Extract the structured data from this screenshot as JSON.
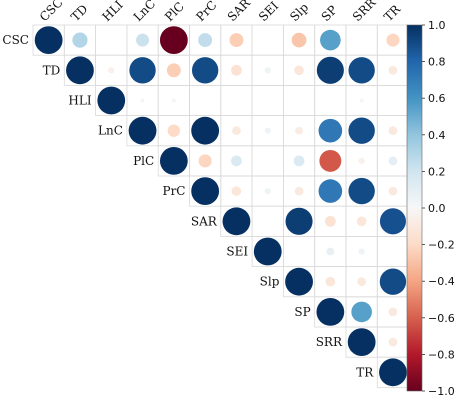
{
  "chart_data": {
    "type": "heatmap",
    "subtype": "upper-triangle correlation matrix, circles sized and colored by r",
    "variables": [
      "CSC",
      "TD",
      "HLI",
      "LnC",
      "PlC",
      "PrC",
      "SAR",
      "SEI",
      "Slp",
      "SP",
      "SRR",
      "TR"
    ],
    "matrix": [
      [
        1.0,
        0.3,
        0.0,
        0.22,
        -1.0,
        0.25,
        -0.25,
        0.0,
        -0.28,
        0.55,
        0.0,
        -0.22
      ],
      [
        0.3,
        1.0,
        -0.05,
        0.9,
        -0.25,
        0.9,
        -0.15,
        0.05,
        -0.12,
        0.95,
        0.9,
        -0.1
      ],
      [
        0.0,
        -0.05,
        1.0,
        0.02,
        -0.02,
        0.0,
        0.0,
        0.0,
        0.0,
        0.0,
        0.02,
        0.0
      ],
      [
        0.22,
        0.9,
        0.02,
        1.0,
        -0.2,
        1.0,
        -0.1,
        0.05,
        -0.08,
        0.72,
        0.9,
        -0.1
      ],
      [
        -1.0,
        -0.25,
        -0.02,
        -0.2,
        1.0,
        -0.22,
        0.15,
        0.0,
        0.15,
        -0.62,
        -0.05,
        0.1
      ],
      [
        0.25,
        0.9,
        0.0,
        1.0,
        -0.22,
        1.0,
        -0.12,
        0.05,
        -0.1,
        0.72,
        0.9,
        -0.1
      ],
      [
        -0.25,
        -0.15,
        0.0,
        -0.1,
        0.15,
        -0.12,
        1.0,
        0.0,
        0.95,
        -0.15,
        -0.12,
        0.88
      ],
      [
        0.0,
        0.05,
        0.0,
        0.05,
        0.0,
        0.05,
        0.0,
        1.0,
        0.0,
        0.08,
        0.05,
        0.0
      ],
      [
        -0.28,
        -0.12,
        0.0,
        -0.08,
        0.15,
        -0.1,
        0.95,
        0.0,
        1.0,
        -0.12,
        -0.1,
        0.9
      ],
      [
        0.55,
        0.95,
        0.0,
        0.72,
        -0.62,
        0.72,
        -0.15,
        0.08,
        -0.12,
        1.0,
        0.55,
        -0.1
      ],
      [
        0.0,
        0.9,
        0.02,
        0.9,
        -0.05,
        0.9,
        -0.12,
        0.05,
        -0.1,
        0.55,
        1.0,
        -0.1
      ],
      [
        -0.22,
        -0.1,
        0.0,
        -0.1,
        0.1,
        -0.1,
        0.88,
        0.0,
        0.9,
        -0.1,
        -0.1,
        1.0
      ]
    ],
    "colorbar": {
      "range": [
        -1.0,
        1.0
      ],
      "ticks": [
        "1.0",
        "0.8",
        "0.6",
        "0.4",
        "0.2",
        "0.0",
        "−0.2",
        "−0.4",
        "−0.6",
        "−0.8",
        "−1.0"
      ],
      "tick_values": [
        1.0,
        0.8,
        0.6,
        0.4,
        0.2,
        0.0,
        -0.2,
        -0.4,
        -0.6,
        -0.8,
        -1.0
      ],
      "colors": {
        "positive_strong": "#053061",
        "positive_mid": "#4393c3",
        "positive_light": "#d1e5f0",
        "neutral": "#f7f7f7",
        "negative_light": "#fddbc7",
        "negative_mid": "#d6604d",
        "negative_strong": "#67001f"
      }
    },
    "grid": true,
    "legend": "colorbar right"
  }
}
